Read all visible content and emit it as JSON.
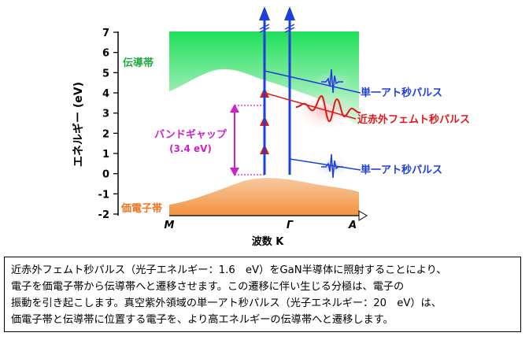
{
  "axes": {
    "y_label": "エネルギー (eV)",
    "y_ticks": [
      "7",
      "6",
      "5",
      "4",
      "3",
      "2",
      "1",
      "0",
      "-1",
      "-2"
    ],
    "x_label": "波数 K",
    "x_ticks": [
      "M",
      "Γ",
      "A"
    ]
  },
  "bands": {
    "conduction": "伝導帯",
    "valence": "価電子帯"
  },
  "bandgap": {
    "label": "バンドギャップ",
    "value": "(3.4 eV)"
  },
  "pulses": {
    "attosecond_upper": "単一アト秒パルス",
    "femtosecond": "近赤外フェムト秒パルス",
    "attosecond_lower": "単一アト秒パルス"
  },
  "caption": {
    "lines": [
      "近赤外フェムト秒パルス（光子エネルギー：1.6　eV）をGaN半導体に照射することにより、",
      "電子を価電子帯から伝導帯へと遷移させます。この遷移に伴い生じる分極は、電子の",
      "振動を引き起こします。真空紫外領域の単一アト秒パルス（光子エネルギー：20　eV）は、",
      "価電子帯と伝導帯に位置する電子を、より高エネルギーの伝導帯へと遷移します。"
    ]
  },
  "colors": {
    "conduction_band": "#22e060",
    "valence_band": "#f59a55",
    "attosecond": "#1f3fd6",
    "femtosecond": "#e01818",
    "bandgap": "#cc22cc"
  }
}
